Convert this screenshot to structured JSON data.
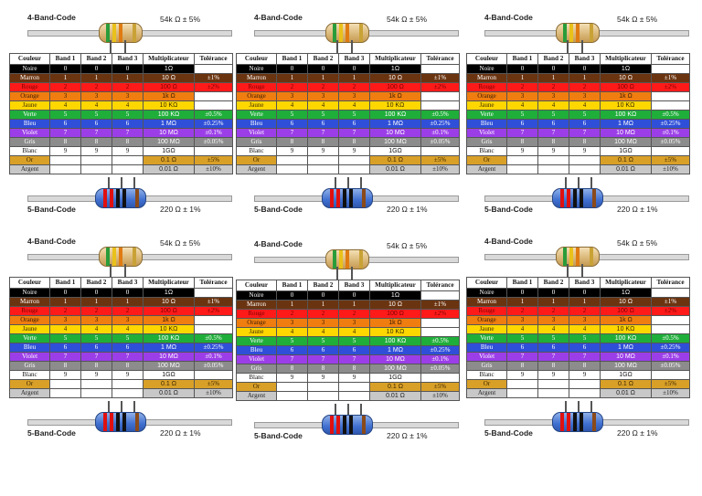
{
  "labels": {
    "four_band": "4-Band-Code",
    "five_band": "5-Band-Code",
    "four_band_value": "54k Ω  ± 5%",
    "five_band_value": "220 Ω  ± 1%"
  },
  "headers": [
    "Couleur",
    "Band 1",
    "Band 2",
    "Band 3",
    "Multiplicateur",
    "Tolérance"
  ],
  "rows": [
    {
      "name": "Noire",
      "b1": "0",
      "b2": "0",
      "b3": "0",
      "mult": "1Ω",
      "tol": "",
      "bg": "#000000",
      "fg": "#ffffff",
      "multBg": "#000000",
      "multFg": "#ffffff",
      "tolBg": "#ffffff"
    },
    {
      "name": "Marron",
      "b1": "1",
      "b2": "1",
      "b3": "1",
      "mult": "10 Ω",
      "tol": "±1%",
      "bg": "#6b3410",
      "fg": "#ffffff",
      "multBg": "#6b3410",
      "multFg": "#ffffff",
      "tolBg": "#6b3410"
    },
    {
      "name": "Rouge",
      "b1": "2",
      "b2": "2",
      "b3": "2",
      "mult": "100 Ω",
      "tol": "±2%",
      "bg": "#ff1a1a",
      "fg": "#7a0000",
      "multBg": "#ff1a1a",
      "multFg": "#7a0000",
      "tolBg": "#ff1a1a"
    },
    {
      "name": "Orange",
      "b1": "3",
      "b2": "3",
      "b3": "3",
      "mult": "1k Ω",
      "tol": "",
      "bg": "#f07d10",
      "fg": "#3a1a00",
      "multBg": "#f07d10",
      "multFg": "#3a1a00",
      "tolBg": "#ffffff"
    },
    {
      "name": "Jaune",
      "b1": "4",
      "b2": "4",
      "b3": "4",
      "mult": "10 KΩ",
      "tol": "",
      "bg": "#ffd700",
      "fg": "#3a2a00",
      "multBg": "#ffd700",
      "multFg": "#3a2a00",
      "tolBg": "#ffffff"
    },
    {
      "name": "Verte",
      "b1": "5",
      "b2": "5",
      "b3": "5",
      "mult": "100 KΩ",
      "tol": "±0.5%",
      "bg": "#1fae3a",
      "fg": "#ffffff",
      "multBg": "#1fae3a",
      "multFg": "#ffffff",
      "tolBg": "#1fae3a"
    },
    {
      "name": "Bleu",
      "b1": "6",
      "b2": "6",
      "b3": "6",
      "mult": "1 MΩ",
      "tol": "±0.25%",
      "bg": "#2f4fd8",
      "fg": "#ffffff",
      "multBg": "#2f4fd8",
      "multFg": "#ffffff",
      "tolBg": "#2f4fd8"
    },
    {
      "name": "Violet",
      "b1": "7",
      "b2": "7",
      "b3": "7",
      "mult": "10 MΩ",
      "tol": "±0.1%",
      "bg": "#9b3ee8",
      "fg": "#ffffff",
      "multBg": "#9b3ee8",
      "multFg": "#ffffff",
      "tolBg": "#9b3ee8"
    },
    {
      "name": "Gris",
      "b1": "8",
      "b2": "8",
      "b3": "8",
      "mult": "100 MΩ",
      "tol": "±0.05%",
      "bg": "#8c8c8c",
      "fg": "#ffffff",
      "multBg": "#8c8c8c",
      "multFg": "#ffffff",
      "tolBg": "#8c8c8c"
    },
    {
      "name": "Blanc",
      "b1": "9",
      "b2": "9",
      "b3": "9",
      "mult": "1GΩ",
      "tol": "",
      "bg": "#ffffff",
      "fg": "#111111",
      "multBg": "#ffffff",
      "multFg": "#111111",
      "tolBg": "#ffffff"
    },
    {
      "name": "Or",
      "b1": "",
      "b2": "",
      "b3": "",
      "mult": "0.1 Ω",
      "tol": "±5%",
      "bg": "#d9a028",
      "fg": "#3a2600",
      "multBg": "#d9a028",
      "multFg": "#3a2600",
      "tolBg": "#d9a028"
    },
    {
      "name": "Argent",
      "b1": "",
      "b2": "",
      "b3": "",
      "mult": "0.01 Ω",
      "tol": "±10%",
      "bg": "#c8c8c8",
      "fg": "#222222",
      "multBg": "#c8c8c8",
      "multFg": "#222222",
      "tolBg": "#c8c8c8"
    }
  ],
  "band_colors": {
    "four": [
      "#2a9c3a",
      "#e9c11a",
      "#e07b12",
      "#c9a236"
    ],
    "five": [
      "#e01010",
      "#e01010",
      "#111111",
      "#111111",
      "#8a4a1a"
    ]
  }
}
